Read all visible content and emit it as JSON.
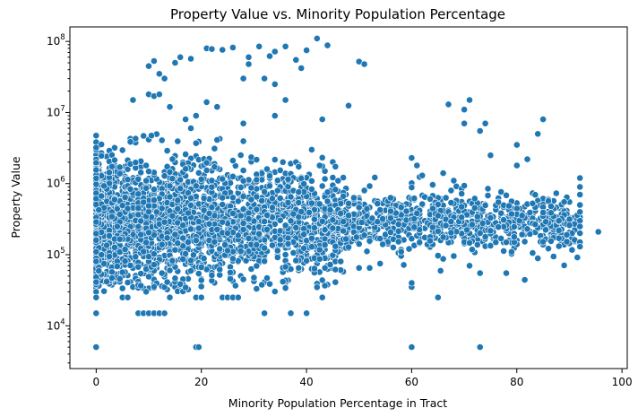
{
  "chart_data": {
    "type": "scatter",
    "title": "Property Value vs. Minority Population Percentage",
    "xlabel": "Minority Population Percentage in Tract",
    "ylabel": "Property Value",
    "xlim": [
      -5,
      101
    ],
    "ylim": [
      2500,
      160000000
    ],
    "yscale": "log",
    "grid": false,
    "color": "#1f77b4",
    "xticks": [
      0,
      20,
      40,
      60,
      80,
      100
    ],
    "xtick_labels": [
      "0",
      "20",
      "40",
      "60",
      "80",
      "100"
    ],
    "yticks": [
      10000,
      100000,
      1000000,
      10000000,
      100000000
    ],
    "ytick_labels": [
      {
        "base": "10",
        "exp": "4"
      },
      {
        "base": "10",
        "exp": "5"
      },
      {
        "base": "10",
        "exp": "6"
      },
      {
        "base": "10",
        "exp": "7"
      },
      {
        "base": "10",
        "exp": "8"
      }
    ],
    "points": [
      [
        0,
        5000
      ],
      [
        19,
        5000
      ],
      [
        19.5,
        5000
      ],
      [
        60,
        5000
      ],
      [
        73,
        5000
      ],
      [
        0,
        15000
      ],
      [
        8,
        15000
      ],
      [
        9,
        15000
      ],
      [
        10,
        15000
      ],
      [
        11,
        15000
      ],
      [
        12,
        15000
      ],
      [
        13,
        15000
      ],
      [
        32,
        15000
      ],
      [
        37,
        15000
      ],
      [
        40,
        15000
      ],
      [
        0,
        25000
      ],
      [
        5,
        25000
      ],
      [
        6,
        25000
      ],
      [
        14,
        25000
      ],
      [
        19,
        25000
      ],
      [
        20,
        25000
      ],
      [
        24,
        25000
      ],
      [
        25,
        25000
      ],
      [
        26,
        25000
      ],
      [
        27,
        25000
      ],
      [
        43,
        25000
      ],
      [
        65,
        25000
      ],
      [
        60,
        35000
      ],
      [
        60,
        40000
      ],
      [
        73,
        55000
      ],
      [
        78,
        55000
      ],
      [
        54,
        75000
      ],
      [
        52,
        65000
      ],
      [
        50,
        65000
      ],
      [
        71,
        70000
      ],
      [
        7,
        15000000
      ],
      [
        10,
        18000000
      ],
      [
        11,
        17000000
      ],
      [
        12,
        18000000
      ],
      [
        14,
        12000000
      ],
      [
        17,
        8000000
      ],
      [
        18,
        6000000
      ],
      [
        19,
        9000000
      ],
      [
        21,
        14000000
      ],
      [
        23,
        12000000
      ],
      [
        28,
        7000000
      ],
      [
        34,
        9000000
      ],
      [
        36,
        15000000
      ],
      [
        41,
        3000000
      ],
      [
        43,
        8000000
      ],
      [
        48,
        12500000
      ],
      [
        10,
        45000000
      ],
      [
        11,
        53000000
      ],
      [
        12,
        35000000
      ],
      [
        13,
        30000000
      ],
      [
        15,
        50000000
      ],
      [
        16,
        60000000
      ],
      [
        18,
        57000000
      ],
      [
        21,
        80000000
      ],
      [
        22,
        78000000
      ],
      [
        24,
        76000000
      ],
      [
        26,
        82000000
      ],
      [
        29,
        48000000
      ],
      [
        29,
        60000000
      ],
      [
        31,
        85000000
      ],
      [
        33,
        62000000
      ],
      [
        34,
        72000000
      ],
      [
        36,
        85000000
      ],
      [
        38,
        55000000
      ],
      [
        40,
        75000000
      ],
      [
        42,
        110000000
      ],
      [
        44,
        88000000
      ],
      [
        28,
        30000000
      ],
      [
        32,
        30000000
      ],
      [
        34,
        25000000
      ],
      [
        39,
        42000000
      ],
      [
        50,
        52000000
      ],
      [
        51,
        48000000
      ],
      [
        67,
        13000000
      ],
      [
        70,
        11000000
      ],
      [
        71,
        15000000
      ],
      [
        74,
        7000000
      ],
      [
        73,
        5500000
      ],
      [
        75,
        2500000
      ],
      [
        80,
        1800000
      ],
      [
        80,
        3500000
      ],
      [
        82,
        2200000
      ],
      [
        84,
        5000000
      ],
      [
        85,
        8000000
      ],
      [
        70,
        7000000
      ],
      [
        60,
        2300000
      ],
      [
        61,
        1800000
      ],
      [
        62,
        1300000
      ],
      [
        66,
        1400000
      ],
      [
        68,
        1100000
      ],
      [
        88,
        300000
      ],
      [
        88,
        220000
      ],
      [
        88,
        170000
      ],
      [
        92,
        1200000
      ],
      [
        92,
        900000
      ],
      [
        92,
        700000
      ],
      [
        92,
        500000
      ],
      [
        92,
        400000
      ],
      [
        92,
        300000
      ],
      [
        92,
        250000
      ],
      [
        92,
        200000
      ],
      [
        92,
        150000
      ],
      [
        92,
        130000
      ],
      [
        95.5,
        210000
      ]
    ]
  }
}
